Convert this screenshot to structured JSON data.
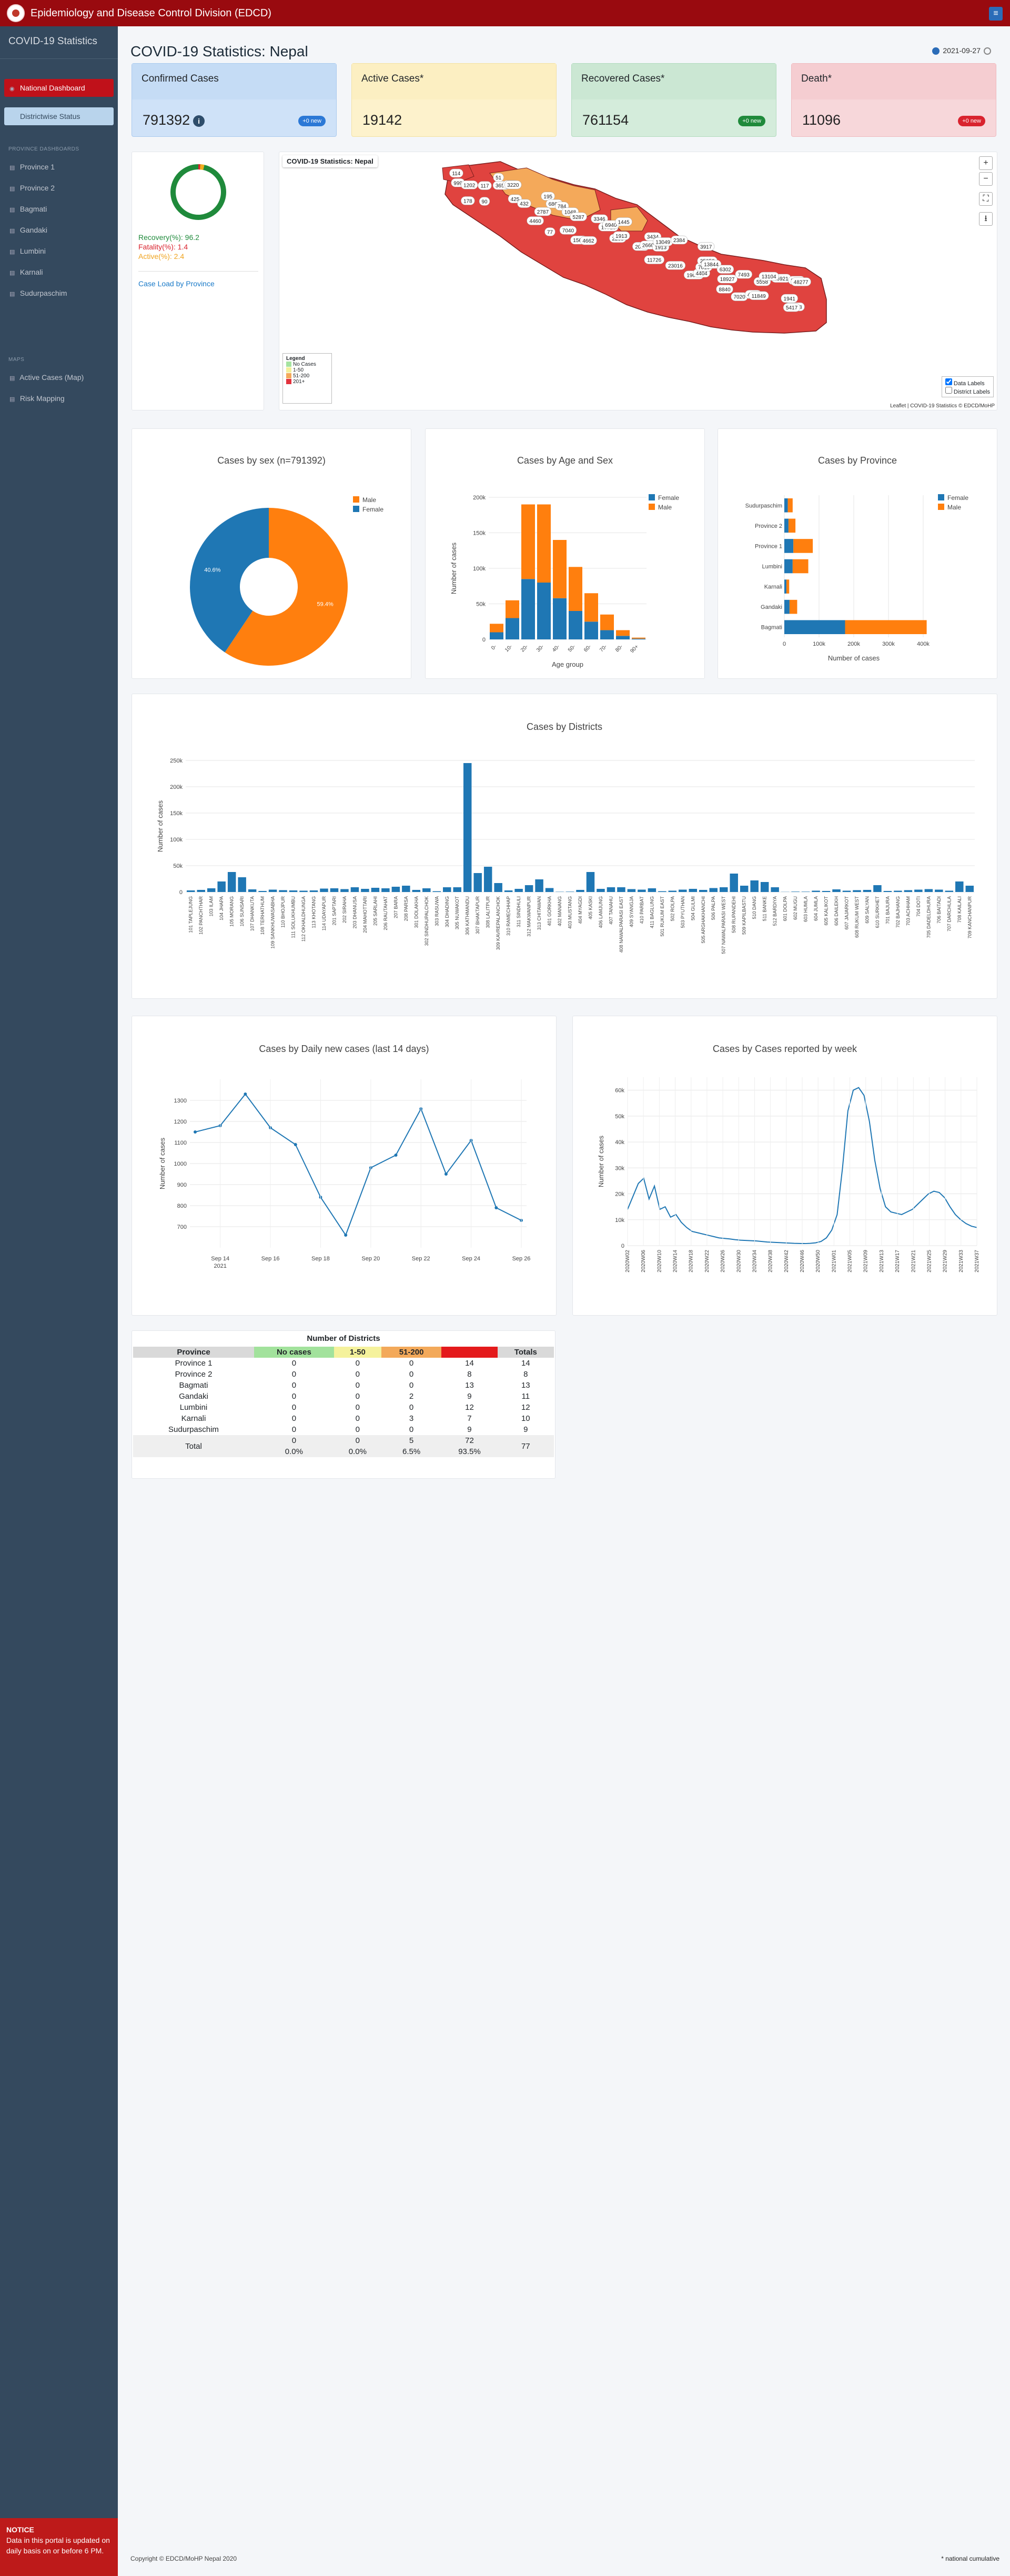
{
  "topbar": {
    "title": "Epidemiology and Disease Control Division (EDCD)",
    "menu_icon": "grid-icon"
  },
  "sidebar": {
    "brand": "COVID-19 Statistics",
    "nav": [
      {
        "label": "National Dashboard",
        "icon": "dashboard-icon"
      },
      {
        "label": "Districtwise Status",
        "icon": "circle-icon"
      }
    ],
    "province_heading": "PROVINCE DASHBOARDS",
    "provinces": [
      "Province 1",
      "Province 2",
      "Bagmati",
      "Gandaki",
      "Lumbini",
      "Karnali",
      "Sudurpaschim"
    ],
    "maps_heading": "MAPS",
    "maps": [
      "Active Cases (Map)",
      "Risk Mapping"
    ],
    "notice_title": "NOTICE",
    "notice_text": "Data in this portal is updated on daily basis on or before 6 PM."
  },
  "header": {
    "title": "COVID-19 Statistics: Nepal",
    "date": "2021-09-27"
  },
  "cards": [
    {
      "label": "Confirmed Cases",
      "value": "791392",
      "badge": "+0 new",
      "bg": "#cfe2f8",
      "badge_bg": "#2b78d6"
    },
    {
      "label": "Active Cases*",
      "value": "19142",
      "badge": "",
      "bg": "#fdf2cc",
      "badge_bg": ""
    },
    {
      "label": "Recovered Cases*",
      "value": "761154",
      "badge": "+0 new",
      "bg": "#d4ecdb",
      "badge_bg": "#1f8a3b"
    },
    {
      "label": "Death*",
      "value": "11096",
      "badge": "+0 new",
      "bg": "#f7d7da",
      "badge_bg": "#d9232e"
    }
  ],
  "ratios": {
    "recovery": "Recovery(%): 96.2",
    "fatality": "Fatality(%): 1.4",
    "active": "Active(%): 2.4",
    "link": "Case Load by Province",
    "recovery_frac": 0.962,
    "fatality_frac": 0.014,
    "active_frac": 0.024
  },
  "map": {
    "title": "COVID-19 Statistics: Nepal",
    "legend_title": "Legend",
    "legend": [
      {
        "label": "No Cases",
        "color": "#a5e3a0"
      },
      {
        "label": "1-50",
        "color": "#f3ef9a"
      },
      {
        "label": "51-200",
        "color": "#f4a95a"
      },
      {
        "label": "201+",
        "color": "#e2323d"
      }
    ],
    "chk_data": "Data Labels",
    "chk_district": "District Labels",
    "attribution": "Leaflet | COVID-19 Statistics © EDCD/MoHP",
    "labels": [
      "999",
      "114",
      "1202",
      "178",
      "117",
      "90",
      "51",
      "3657",
      "1620",
      "425",
      "3220",
      "4460",
      "432",
      "195",
      "2787",
      "6860",
      "77",
      "784",
      "1048",
      "7040",
      "5287",
      "1560",
      "4662",
      "3346",
      "17713",
      "2288",
      "6940",
      "1445",
      "1913",
      "2007",
      "3434",
      "2660",
      "11726",
      "1913",
      "13049",
      "2384",
      "23016",
      "19096",
      "4404",
      "7010",
      "3917",
      "25058",
      "13844",
      "18927",
      "8840",
      "6302",
      "7493",
      "7020",
      "4201",
      "5558",
      "11849",
      "16921",
      "13104",
      "1941",
      "29788",
      "5417",
      "2987",
      "48277"
    ]
  },
  "chart_data": [
    {
      "type": "pie",
      "title": "Cases by sex (n=791392)",
      "series": [
        {
          "name": "Male",
          "value": 59.4,
          "color": "#ff7f0e"
        },
        {
          "name": "Female",
          "value": 40.6,
          "color": "#1f77b4"
        }
      ],
      "labels": [
        "59.4%",
        "40.6%"
      ],
      "legend": [
        "Male",
        "Female"
      ]
    },
    {
      "type": "bar",
      "title": "Cases by Age and Sex",
      "xlabel": "Age group",
      "ylabel": "Number of cases",
      "categories": [
        "0-",
        "10-",
        "20-",
        "30-",
        "40-",
        "50-",
        "60-",
        "70-",
        "80-",
        "90+"
      ],
      "series": [
        {
          "name": "Female",
          "color": "#1f77b4",
          "values": [
            10000,
            30000,
            85000,
            80000,
            58000,
            40000,
            25000,
            13000,
            5000,
            1000
          ]
        },
        {
          "name": "Male",
          "color": "#ff7f0e",
          "values": [
            12000,
            25000,
            105000,
            110000,
            82000,
            62000,
            40000,
            22000,
            8000,
            1500
          ]
        }
      ],
      "ylim": [
        0,
        200000
      ],
      "yticks": [
        "0",
        "50k",
        "100k",
        "150k",
        "200k"
      ],
      "legend": [
        "Female",
        "Male"
      ]
    },
    {
      "type": "bar",
      "title": "Cases by Province",
      "orientation": "h",
      "xlabel": "Number of cases",
      "categories": [
        "Sudurpaschim",
        "Province 2",
        "Province 1",
        "Lumbini",
        "Karnali",
        "Gandaki",
        "Bagmati"
      ],
      "series": [
        {
          "name": "Female",
          "color": "#1f77b4",
          "values": [
            10000,
            12000,
            26000,
            24000,
            6000,
            15000,
            175000
          ]
        },
        {
          "name": "Male",
          "color": "#ff7f0e",
          "values": [
            14000,
            20000,
            56000,
            45000,
            8000,
            22000,
            235000
          ]
        }
      ],
      "xlim": [
        0,
        400000
      ],
      "xticks": [
        "0",
        "100k",
        "200k",
        "300k",
        "400k"
      ],
      "legend": [
        "Female",
        "Male"
      ]
    },
    {
      "type": "bar",
      "title": "Cases by Districts",
      "ylabel": "Number of cases",
      "ylim": [
        0,
        250000
      ],
      "yticks": [
        "0",
        "50k",
        "100k",
        "150k",
        "200k",
        "250k"
      ],
      "categories": [
        "101 TAPLEJUNG",
        "102 PANCHTHAR",
        "103 ILAM",
        "104 JHAPA",
        "105 MORANG",
        "106 SUNSARI",
        "107 DHANKUTA",
        "108 TERHATHUM",
        "109 SANKHUWASABHA",
        "110 BHOJPUR",
        "111 SOLUKHUMBU",
        "112 OKHALDHUNGA",
        "113 KHOTANG",
        "114 UDAYAPUR",
        "201 SAPTARI",
        "202 SIRAHA",
        "203 DHANUSA",
        "204 MAHOTTARI",
        "205 SARLAHI",
        "206 RAUTAHAT",
        "207 BARA",
        "208 PARSA",
        "301 DOLAKHA",
        "302 SINDHUPALCHOK",
        "303 RASUWA",
        "304 DHADING",
        "305 NUWAKOT",
        "306 KATHMANDU",
        "307 BHAKTAPUR",
        "308 LALITPUR",
        "309 KAVREPALANCHOK",
        "310 RAMECHHAP",
        "311 SINDHULI",
        "312 MAKWANPUR",
        "313 CHITAWAN",
        "401 GORKHA",
        "402 MANANG",
        "403 MUSTANG",
        "404 MYAGDI",
        "405 KASKI",
        "406 LAMJUNG",
        "407 TANAHU",
        "408 NAWALPARASI EAST",
        "409 SYANGJA",
        "410 PARBAT",
        "411 BAGLUNG",
        "501 RUKUM EAST",
        "502 ROLPA",
        "503 PYUTHAN",
        "504 GULMI",
        "505 ARGHAKHANCHI",
        "506 PALPA",
        "507 NAWALPARASI WEST",
        "508 RUPANDEHI",
        "509 KAPILBASTU",
        "510 DANG",
        "511 BANKE",
        "512 BARDIYA",
        "601 DOLPA",
        "602 MUGU",
        "603 HUMLA",
        "604 JUMLA",
        "605 KALIKOT",
        "606 DAILEKH",
        "607 JAJARKOT",
        "608 RUKUM WEST",
        "609 SALYAN",
        "610 SURKHET",
        "701 BAJURA",
        "702 BAJHANG",
        "703 ACHHAM",
        "704 DOTI",
        "705 DADELDHURA",
        "706 BAITADI",
        "707 DARCHULA",
        "708 KAILALI",
        "709 KANCHANPUR"
      ],
      "values": [
        3000,
        4000,
        7000,
        20000,
        38000,
        28000,
        5000,
        2000,
        4500,
        3500,
        3000,
        2500,
        3000,
        6500,
        7000,
        5500,
        9000,
        6000,
        8000,
        7000,
        10000,
        12000,
        4000,
        7000,
        1500,
        9000,
        9000,
        245000,
        36000,
        48000,
        17000,
        3000,
        6000,
        13000,
        24000,
        7500,
        500,
        700,
        4000,
        38000,
        6000,
        9000,
        9000,
        5500,
        4500,
        7000,
        1500,
        2500,
        4500,
        6000,
        4000,
        7500,
        9000,
        35000,
        12000,
        22000,
        19000,
        9000,
        300,
        800,
        700,
        2500,
        2000,
        5000,
        2500,
        3500,
        4000,
        13000,
        2000,
        2500,
        3500,
        4500,
        5500,
        4500,
        2500,
        20000,
        12000
      ]
    },
    {
      "type": "line",
      "title": "Cases by Daily new cases (last 14 days)",
      "ylabel": "Number of cases",
      "x": [
        "Sep 13",
        "Sep 14",
        "Sep 15",
        "Sep 16",
        "Sep 17",
        "Sep 18",
        "Sep 19",
        "Sep 20",
        "Sep 21",
        "Sep 22",
        "Sep 23",
        "Sep 24",
        "Sep 25",
        "Sep 26"
      ],
      "values": [
        1150,
        1180,
        1330,
        1170,
        1090,
        840,
        660,
        980,
        1040,
        1260,
        950,
        1110,
        790,
        730
      ],
      "ylim": [
        600,
        1400
      ],
      "yticks": [
        "700",
        "800",
        "900",
        "1000",
        "1100",
        "1200",
        "1300"
      ],
      "xticks": [
        "Sep 14",
        "Sep 16",
        "Sep 18",
        "Sep 20",
        "Sep 22",
        "Sep 24",
        "Sep 26"
      ],
      "year_label": "2021"
    },
    {
      "type": "line",
      "title": "Cases by Cases reported by week",
      "ylabel": "Number of cases",
      "ylim": [
        0,
        65000
      ],
      "yticks": [
        "0",
        "10k",
        "20k",
        "30k",
        "40k",
        "50k",
        "60k"
      ],
      "xticks": [
        "2020W02",
        "2020W06",
        "2020W10",
        "2020W14",
        "2020W18",
        "2020W22",
        "2020W26",
        "2020W30",
        "2020W34",
        "2020W38",
        "2020W42",
        "2020W46",
        "2020W50",
        "2021W01",
        "2021W05",
        "2021W09",
        "2021W13",
        "2021W17",
        "2021W21",
        "2021W25",
        "2021W29",
        "2021W33",
        "2021W37"
      ],
      "values": [
        14000,
        19000,
        24000,
        26000,
        18000,
        23000,
        14000,
        15000,
        11000,
        12000,
        9000,
        7000,
        5500,
        5000,
        4500,
        4000,
        3500,
        3000,
        2800,
        2600,
        2300,
        2100,
        2000,
        1900,
        1800,
        1600,
        1400,
        1300,
        1200,
        1100,
        1000,
        900,
        850,
        800,
        900,
        1100,
        1600,
        3000,
        6000,
        12000,
        30000,
        52000,
        60000,
        61000,
        58000,
        48000,
        33000,
        22000,
        15000,
        13000,
        12500,
        12000,
        13000,
        14000,
        16000,
        18000,
        20000,
        21000,
        20500,
        18500,
        15000,
        12000,
        10000,
        8500,
        7500,
        7000
      ]
    }
  ],
  "district_table": {
    "caption": "Number of Districts",
    "headers": [
      "Province",
      "No cases",
      "1-50",
      "51-200",
      "201+",
      "Totals"
    ],
    "header_colors": [
      "#d9d9d9",
      "#a2e29c",
      "#f5f29c",
      "#f3a95a",
      "#e41a1c",
      "#d9d9d9"
    ],
    "rows": [
      [
        "Province 1",
        "0",
        "0",
        "0",
        "14",
        "14"
      ],
      [
        "Province 2",
        "0",
        "0",
        "0",
        "8",
        "8"
      ],
      [
        "Bagmati",
        "0",
        "0",
        "0",
        "13",
        "13"
      ],
      [
        "Gandaki",
        "0",
        "0",
        "2",
        "9",
        "11"
      ],
      [
        "Lumbini",
        "0",
        "0",
        "0",
        "12",
        "12"
      ],
      [
        "Karnali",
        "0",
        "0",
        "3",
        "7",
        "10"
      ],
      [
        "Sudurpaschim",
        "0",
        "0",
        "0",
        "9",
        "9"
      ]
    ],
    "total_label": "Total",
    "total_counts": [
      "0",
      "0",
      "5",
      "72"
    ],
    "total_pct": [
      "0.0%",
      "0.0%",
      "6.5%",
      "93.5%"
    ],
    "total_all": "77"
  },
  "footer": {
    "copyright": "Copyright © EDCD/MoHP Nepal 2020",
    "note": "* national cumulative"
  }
}
